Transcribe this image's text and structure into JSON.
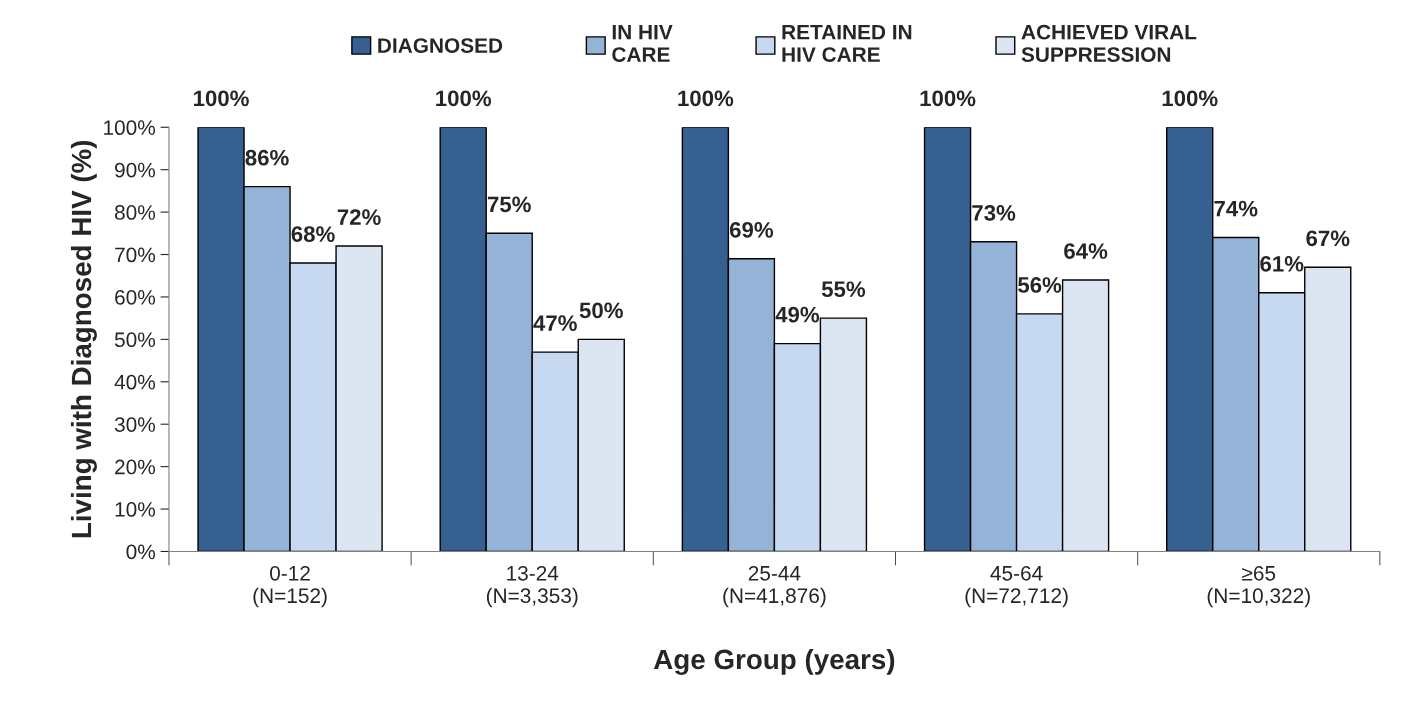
{
  "chart_data": {
    "type": "bar",
    "xlabel": "Age Group (years)",
    "ylabel": "Living with Diagnosed HIV (%)",
    "categories": [
      "0-12\n(N=152)",
      "13-24\n(N=3,353)",
      "25-44\n(N=41,876)",
      "45-64\n(N=72,712)",
      "≥65\n(N=10,322)"
    ],
    "series": [
      {
        "name": "DIAGNOSED",
        "color": "#35608f",
        "values": [
          100,
          100,
          100,
          100,
          100
        ],
        "value_labels": [
          "100%",
          "100%",
          "100%",
          "100%",
          "100%"
        ]
      },
      {
        "name": "IN HIV\nCARE",
        "color": "#95b3d7",
        "values": [
          86,
          75,
          69,
          73,
          74
        ],
        "value_labels": [
          "86%",
          "75%",
          "69%",
          "73%",
          "74%"
        ]
      },
      {
        "name": "RETAINED IN\nHIV CARE",
        "color": "#c6d9f1",
        "values": [
          68,
          47,
          49,
          56,
          61
        ],
        "value_labels": [
          "68%",
          "47%",
          "49%",
          "56%",
          "61%"
        ]
      },
      {
        "name": "ACHIEVED VIRAL\nSUPPRESSION",
        "color": "#dce6f2",
        "values": [
          72,
          50,
          55,
          64,
          67
        ],
        "value_labels": [
          "72%",
          "50%",
          "55%",
          "64%",
          "67%"
        ]
      }
    ],
    "ylim": [
      0,
      100
    ],
    "yticks": [
      {
        "value": 0,
        "label": "0%"
      },
      {
        "value": 10,
        "label": "10%"
      },
      {
        "value": 20,
        "label": "20%"
      },
      {
        "value": 30,
        "label": "30%"
      },
      {
        "value": 40,
        "label": "40%"
      },
      {
        "value": 50,
        "label": "50%"
      },
      {
        "value": 60,
        "label": "60%"
      },
      {
        "value": 70,
        "label": "70%"
      },
      {
        "value": 80,
        "label": "80%"
      },
      {
        "value": 90,
        "label": "90%"
      },
      {
        "value": 100,
        "label": "100%"
      }
    ],
    "legend": "top",
    "grid": false
  }
}
